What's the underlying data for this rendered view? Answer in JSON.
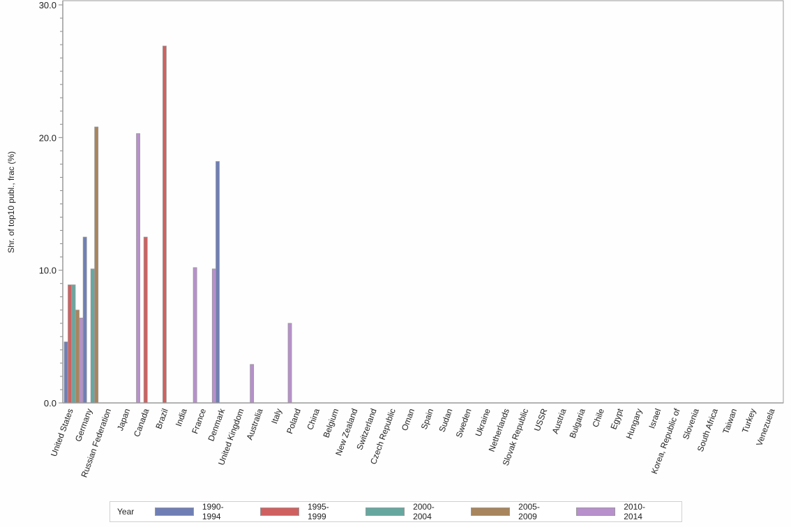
{
  "chart_data": {
    "type": "bar",
    "title": "",
    "xlabel": "",
    "ylabel": "Shr. of top10 publ., frac (%)",
    "ylim": [
      0,
      30
    ],
    "yticks": [
      "0.0",
      "10.0",
      "20.0",
      "30.0"
    ],
    "grid": false,
    "legend_position": "bottom",
    "legend_title": "Year",
    "categories": [
      "United States",
      "Germany",
      "Russian Federation",
      "Japan",
      "Canada",
      "Brazil",
      "India",
      "France",
      "Denmark",
      "United Kingdom",
      "Australia",
      "Italy",
      "Poland",
      "China",
      "Belgium",
      "New Zealand",
      "Switzerland",
      "Czech Republic",
      "Oman",
      "Spain",
      "Sudan",
      "Sweden",
      "Ukraine",
      "Netherlands",
      "Slovak Republic",
      "USSR",
      "Austria",
      "Bulgaria",
      "Chile",
      "Egypt",
      "Hungary",
      "Israel",
      "Korea, Republic of",
      "Slovenia",
      "South Africa",
      "Taiwan",
      "Turkey",
      "Venezuela"
    ],
    "series": [
      {
        "name": "1990-1994",
        "color": "#6f7fb5",
        "values": [
          4.6,
          12.5,
          0,
          0,
          0,
          0,
          0,
          0,
          18.2,
          0,
          0,
          0,
          0,
          0,
          0,
          0,
          0,
          0,
          0,
          0,
          0,
          0,
          0,
          0,
          0,
          0,
          0,
          0,
          0,
          0,
          0,
          0,
          0,
          0,
          0,
          0,
          0,
          0
        ]
      },
      {
        "name": "1995-1999",
        "color": "#d06060",
        "values": [
          8.9,
          0,
          0,
          0,
          12.5,
          26.9,
          0,
          0,
          0,
          0,
          0,
          0,
          0,
          0,
          0,
          0,
          0,
          0,
          0,
          0,
          0,
          0,
          0,
          0,
          0,
          0,
          0,
          0,
          0,
          0,
          0,
          0,
          0,
          0,
          0,
          0,
          0,
          0
        ]
      },
      {
        "name": "2000-2004",
        "color": "#66a8a0",
        "values": [
          8.9,
          10.1,
          0,
          0,
          0,
          0,
          0,
          0,
          0,
          0,
          0,
          0,
          0,
          0,
          0,
          0,
          0,
          0,
          0,
          0,
          0,
          0,
          0,
          0,
          0,
          0,
          0,
          0,
          0,
          0,
          0,
          0,
          0,
          0,
          0,
          0,
          0,
          0
        ]
      },
      {
        "name": "2005-2009",
        "color": "#a8855c",
        "values": [
          7.0,
          20.8,
          0,
          0,
          0,
          0,
          0,
          0,
          0,
          0,
          0,
          0,
          0,
          0,
          0,
          0,
          0,
          0,
          0,
          0,
          0,
          0,
          0,
          0,
          0,
          0,
          0,
          0,
          0,
          0,
          0,
          0,
          0,
          0,
          0,
          0,
          0,
          0
        ]
      },
      {
        "name": "2010-2014",
        "color": "#b890cc",
        "values": [
          6.4,
          0,
          0,
          20.3,
          0,
          0,
          10.2,
          10.1,
          0,
          2.9,
          0,
          6.0,
          0,
          0,
          0,
          0,
          0,
          0,
          0,
          0,
          0,
          0,
          0,
          0,
          0,
          0,
          0,
          0,
          0,
          0,
          0,
          0,
          0,
          0,
          0,
          0,
          0,
          0
        ]
      }
    ]
  }
}
